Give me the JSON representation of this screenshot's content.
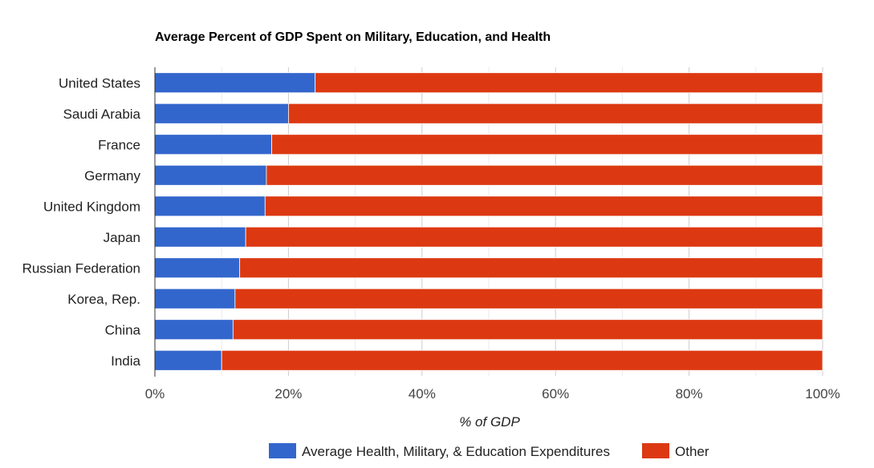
{
  "chart_data": {
    "type": "bar",
    "orientation": "horizontal",
    "stacked": true,
    "title": "Average Percent of GDP Spent on Military, Education, and Health",
    "xlabel": "% of GDP",
    "ylabel": "",
    "xlim": [
      0,
      100
    ],
    "x_ticks": [
      "0%",
      "20%",
      "40%",
      "60%",
      "80%",
      "100%"
    ],
    "grid": true,
    "legend_position": "bottom",
    "categories": [
      "United States",
      "Saudi Arabia",
      "France",
      "Germany",
      "United Kingdom",
      "Japan",
      "Russian Federation",
      "Korea, Rep.",
      "China",
      "India"
    ],
    "series": [
      {
        "name": "Average Health, Military, & Education Expenditures",
        "color": "#3366cc",
        "values": [
          24.0,
          20.0,
          17.5,
          16.7,
          16.5,
          13.6,
          12.7,
          12.0,
          11.7,
          10.0
        ]
      },
      {
        "name": "Other",
        "color": "#dc3912",
        "values": [
          76.0,
          80.0,
          82.5,
          83.3,
          83.5,
          86.4,
          87.3,
          88.0,
          88.3,
          90.0
        ]
      }
    ]
  }
}
